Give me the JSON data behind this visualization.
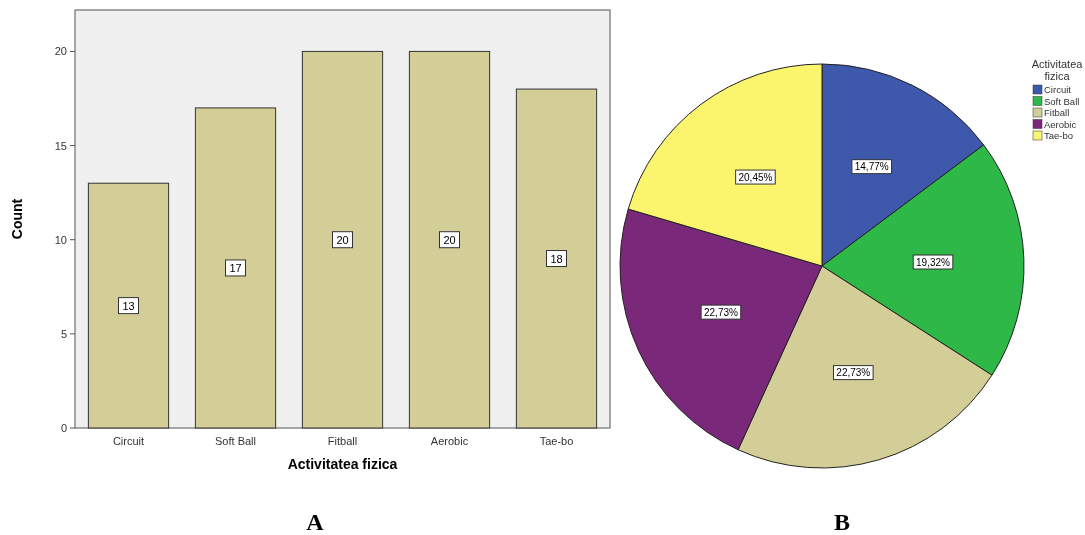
{
  "chart_data": [
    {
      "type": "bar",
      "xlabel": "Activitatea fizica",
      "ylabel": "Count",
      "categories": [
        "Circuit",
        "Soft Ball",
        "Fitball",
        "Aerobic",
        "Tae-bo"
      ],
      "values": [
        13,
        17,
        20,
        20,
        18
      ],
      "color": "#d3ce97",
      "ylim": [
        0,
        22.2
      ],
      "yticks": [
        0,
        5,
        10,
        15,
        20
      ],
      "data_labels": true,
      "grid": false,
      "annotations": [
        "A"
      ]
    },
    {
      "type": "pie",
      "legend_title": "Activitatea fizica",
      "categories": [
        "Circuit",
        "Soft Ball",
        "Fitball",
        "Aerobic",
        "Tae-bo"
      ],
      "values": [
        14.77,
        19.32,
        22.73,
        22.73,
        20.45
      ],
      "value_labels": [
        "14,77%",
        "19,32%",
        "22,73%",
        "22,73%",
        "20,45%"
      ],
      "colors": [
        "#3e58ac",
        "#2eb848",
        "#d3ce97",
        "#7a287a",
        "#fbf56e"
      ],
      "legend": "right",
      "annotations": [
        "B"
      ]
    }
  ]
}
